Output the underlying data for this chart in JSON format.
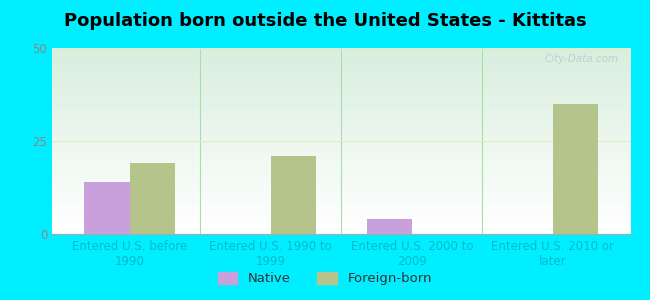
{
  "title": "Population born outside the United States - Kittitas",
  "categories": [
    "Entered U.S. before\n1990",
    "Entered U.S. 1990 to\n1999",
    "Entered U.S. 2000 to\n2009",
    "Entered U.S. 2010 or\nlater"
  ],
  "native_values": [
    14,
    0,
    4,
    0
  ],
  "foreign_values": [
    19,
    21,
    0,
    35
  ],
  "native_color": "#c9a0dc",
  "foreign_color": "#b5c48a",
  "background_outer": "#00eeff",
  "ylim": [
    0,
    50
  ],
  "yticks": [
    0,
    25,
    50
  ],
  "bar_width": 0.32,
  "title_fontsize": 13,
  "tick_fontsize": 8.5,
  "legend_fontsize": 9.5,
  "watermark": "City-Data.com",
  "gradient_top_color": "#d8eedd",
  "gradient_bottom_color": "#ffffff",
  "separator_color": "#aaddaa",
  "grid_color": "#ddeecc",
  "xtick_color": "#00bbcc",
  "ytick_color": "#888888"
}
